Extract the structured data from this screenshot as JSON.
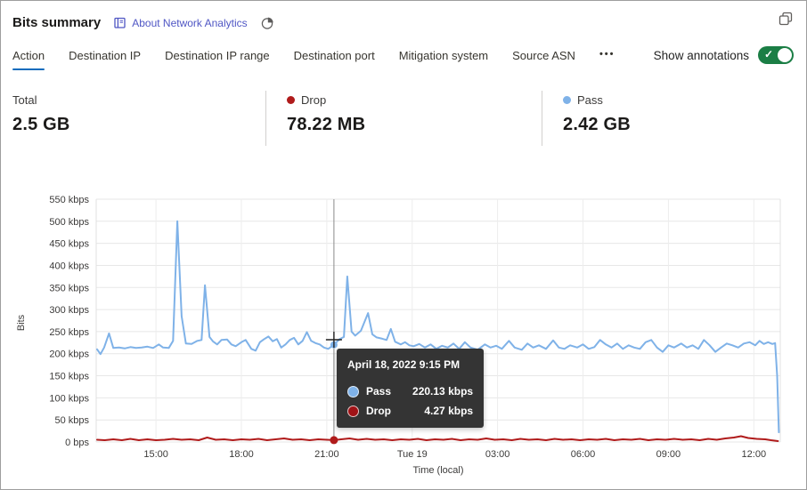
{
  "header": {
    "title": "Bits summary",
    "about_link": "About Network Analytics"
  },
  "tabs": {
    "items": [
      {
        "label": "Action",
        "active": true
      },
      {
        "label": "Destination IP",
        "active": false
      },
      {
        "label": "Destination IP range",
        "active": false
      },
      {
        "label": "Destination port",
        "active": false
      },
      {
        "label": "Mitigation system",
        "active": false
      },
      {
        "label": "Source ASN",
        "active": false
      }
    ],
    "more": "•••",
    "active_underline_color": "#0f6cbd"
  },
  "annotations": {
    "label": "Show annotations",
    "state": "on",
    "on_color": "#1b7e45"
  },
  "stats": {
    "cards": [
      {
        "label": "Total",
        "value": "2.5 GB"
      },
      {
        "label": "Drop",
        "value": "78.22 MB",
        "dot_color": "#b01b1b"
      },
      {
        "label": "Pass",
        "value": "2.42 GB",
        "dot_color": "#7fb2e8"
      }
    ]
  },
  "tooltip": {
    "title": "April 18, 2022 9:15 PM",
    "rows": [
      {
        "label": "Pass",
        "value": "220.13 kbps",
        "color": "#7fb2e8"
      },
      {
        "label": "Drop",
        "value": "4.27 kbps",
        "color": "#a01216"
      }
    ]
  },
  "chart_data": {
    "type": "line",
    "title": "Bits summary",
    "xlabel": "Time (local)",
    "ylabel": "Bits",
    "unit": "kbps",
    "ylim": [
      0,
      550
    ],
    "x_range": [
      12.9,
      36.93
    ],
    "grid": true,
    "y_ticks": [
      {
        "value": 550,
        "label": "550 kbps"
      },
      {
        "value": 500,
        "label": "500 kbps"
      },
      {
        "value": 450,
        "label": "450 kbps"
      },
      {
        "value": 400,
        "label": "400 kbps"
      },
      {
        "value": 350,
        "label": "350 kbps"
      },
      {
        "value": 300,
        "label": "300 kbps"
      },
      {
        "value": 250,
        "label": "250 kbps"
      },
      {
        "value": 200,
        "label": "200 kbps"
      },
      {
        "value": 150,
        "label": "150 kbps"
      },
      {
        "value": 100,
        "label": "100 kbps"
      },
      {
        "value": 50,
        "label": "50 kbps"
      },
      {
        "value": 0,
        "label": "0 bps"
      }
    ],
    "x_ticks": [
      {
        "value": 15,
        "label": "15:00"
      },
      {
        "value": 18,
        "label": "18:00"
      },
      {
        "value": 21,
        "label": "21:00"
      },
      {
        "value": 24,
        "label": "Tue 19"
      },
      {
        "value": 27,
        "label": "03:00"
      },
      {
        "value": 30,
        "label": "06:00"
      },
      {
        "value": 33,
        "label": "09:00"
      },
      {
        "value": 36,
        "label": "12:00"
      }
    ],
    "crosshair": {
      "t": 21.25,
      "time_label": "April 18, 2022 9:15 PM",
      "pass_kbps": 220.13,
      "drop_kbps": 4.27
    },
    "series": [
      {
        "name": "Pass",
        "color": "#7fb2e8",
        "points": [
          [
            12.93,
            210
          ],
          [
            13.05,
            199
          ],
          [
            13.18,
            214
          ],
          [
            13.35,
            246
          ],
          [
            13.5,
            213
          ],
          [
            13.7,
            214
          ],
          [
            13.9,
            212
          ],
          [
            14.1,
            215
          ],
          [
            14.3,
            213
          ],
          [
            14.5,
            214
          ],
          [
            14.7,
            216
          ],
          [
            14.9,
            213
          ],
          [
            15.1,
            221
          ],
          [
            15.25,
            214
          ],
          [
            15.45,
            213
          ],
          [
            15.6,
            229
          ],
          [
            15.75,
            500
          ],
          [
            15.9,
            285
          ],
          [
            16.05,
            223
          ],
          [
            16.25,
            222
          ],
          [
            16.45,
            229
          ],
          [
            16.6,
            231
          ],
          [
            16.72,
            355
          ],
          [
            16.88,
            238
          ],
          [
            17.0,
            228
          ],
          [
            17.15,
            221
          ],
          [
            17.3,
            231
          ],
          [
            17.5,
            232
          ],
          [
            17.65,
            221
          ],
          [
            17.8,
            217
          ],
          [
            18.0,
            226
          ],
          [
            18.15,
            231
          ],
          [
            18.35,
            211
          ],
          [
            18.5,
            207
          ],
          [
            18.65,
            226
          ],
          [
            18.8,
            233
          ],
          [
            18.95,
            239
          ],
          [
            19.1,
            228
          ],
          [
            19.25,
            233
          ],
          [
            19.4,
            214
          ],
          [
            19.55,
            221
          ],
          [
            19.7,
            231
          ],
          [
            19.85,
            236
          ],
          [
            20.0,
            221
          ],
          [
            20.15,
            229
          ],
          [
            20.3,
            249
          ],
          [
            20.45,
            229
          ],
          [
            20.6,
            224
          ],
          [
            20.75,
            221
          ],
          [
            20.9,
            214
          ],
          [
            21.05,
            211
          ],
          [
            21.25,
            220.13
          ],
          [
            21.45,
            233
          ],
          [
            21.6,
            238
          ],
          [
            21.72,
            375
          ],
          [
            21.87,
            250
          ],
          [
            22.0,
            241
          ],
          [
            22.2,
            252
          ],
          [
            22.45,
            292
          ],
          [
            22.6,
            244
          ],
          [
            22.75,
            237
          ],
          [
            22.95,
            234
          ],
          [
            23.1,
            231
          ],
          [
            23.25,
            256
          ],
          [
            23.4,
            227
          ],
          [
            23.6,
            221
          ],
          [
            23.75,
            226
          ],
          [
            23.9,
            219
          ],
          [
            24.05,
            217
          ],
          [
            24.25,
            222
          ],
          [
            24.45,
            214
          ],
          [
            24.65,
            221
          ],
          [
            24.85,
            211
          ],
          [
            25.05,
            218
          ],
          [
            25.25,
            214
          ],
          [
            25.45,
            223
          ],
          [
            25.65,
            211
          ],
          [
            25.85,
            226
          ],
          [
            26.05,
            214
          ],
          [
            26.3,
            209
          ],
          [
            26.55,
            221
          ],
          [
            26.75,
            214
          ],
          [
            26.95,
            218
          ],
          [
            27.15,
            211
          ],
          [
            27.4,
            229
          ],
          [
            27.6,
            214
          ],
          [
            27.85,
            209
          ],
          [
            28.05,
            223
          ],
          [
            28.25,
            214
          ],
          [
            28.45,
            219
          ],
          [
            28.7,
            211
          ],
          [
            28.95,
            230
          ],
          [
            29.15,
            214
          ],
          [
            29.35,
            211
          ],
          [
            29.55,
            219
          ],
          [
            29.8,
            214
          ],
          [
            30.0,
            221
          ],
          [
            30.2,
            211
          ],
          [
            30.4,
            215
          ],
          [
            30.6,
            231
          ],
          [
            30.8,
            221
          ],
          [
            31.0,
            214
          ],
          [
            31.2,
            223
          ],
          [
            31.4,
            211
          ],
          [
            31.6,
            219
          ],
          [
            31.8,
            214
          ],
          [
            32.0,
            211
          ],
          [
            32.2,
            226
          ],
          [
            32.4,
            231
          ],
          [
            32.6,
            214
          ],
          [
            32.8,
            204
          ],
          [
            33.0,
            219
          ],
          [
            33.2,
            214
          ],
          [
            33.45,
            223
          ],
          [
            33.65,
            214
          ],
          [
            33.85,
            219
          ],
          [
            34.05,
            211
          ],
          [
            34.25,
            231
          ],
          [
            34.45,
            219
          ],
          [
            34.65,
            204
          ],
          [
            34.85,
            214
          ],
          [
            35.05,
            223
          ],
          [
            35.25,
            219
          ],
          [
            35.45,
            214
          ],
          [
            35.65,
            223
          ],
          [
            35.85,
            226
          ],
          [
            36.05,
            219
          ],
          [
            36.2,
            229
          ],
          [
            36.35,
            222
          ],
          [
            36.5,
            226
          ],
          [
            36.65,
            222
          ],
          [
            36.75,
            224
          ],
          [
            36.82,
            150
          ],
          [
            36.88,
            22
          ]
        ]
      },
      {
        "name": "Drop",
        "color": "#b01b1b",
        "points": [
          [
            12.93,
            5
          ],
          [
            13.2,
            4
          ],
          [
            13.5,
            6
          ],
          [
            13.8,
            4
          ],
          [
            14.1,
            7
          ],
          [
            14.4,
            4
          ],
          [
            14.7,
            6
          ],
          [
            15.0,
            4
          ],
          [
            15.3,
            5
          ],
          [
            15.6,
            7
          ],
          [
            15.9,
            5
          ],
          [
            16.2,
            6
          ],
          [
            16.5,
            4
          ],
          [
            16.8,
            10
          ],
          [
            17.1,
            5
          ],
          [
            17.4,
            6
          ],
          [
            17.7,
            4
          ],
          [
            18.0,
            6
          ],
          [
            18.3,
            5
          ],
          [
            18.6,
            7
          ],
          [
            18.9,
            4
          ],
          [
            19.2,
            6
          ],
          [
            19.5,
            8
          ],
          [
            19.8,
            5
          ],
          [
            20.1,
            6
          ],
          [
            20.4,
            4
          ],
          [
            20.7,
            6
          ],
          [
            21.0,
            5
          ],
          [
            21.25,
            4.27
          ],
          [
            21.5,
            6
          ],
          [
            21.8,
            8
          ],
          [
            22.1,
            5
          ],
          [
            22.4,
            7
          ],
          [
            22.7,
            5
          ],
          [
            23.0,
            6
          ],
          [
            23.3,
            4
          ],
          [
            23.6,
            6
          ],
          [
            23.9,
            5
          ],
          [
            24.2,
            7
          ],
          [
            24.5,
            4
          ],
          [
            24.8,
            6
          ],
          [
            25.1,
            5
          ],
          [
            25.4,
            7
          ],
          [
            25.7,
            4
          ],
          [
            26.0,
            6
          ],
          [
            26.3,
            5
          ],
          [
            26.6,
            8
          ],
          [
            26.9,
            5
          ],
          [
            27.2,
            6
          ],
          [
            27.5,
            4
          ],
          [
            27.8,
            7
          ],
          [
            28.1,
            5
          ],
          [
            28.4,
            6
          ],
          [
            28.7,
            4
          ],
          [
            29.0,
            7
          ],
          [
            29.3,
            5
          ],
          [
            29.6,
            6
          ],
          [
            29.9,
            4
          ],
          [
            30.2,
            6
          ],
          [
            30.5,
            5
          ],
          [
            30.8,
            7
          ],
          [
            31.1,
            4
          ],
          [
            31.4,
            6
          ],
          [
            31.7,
            5
          ],
          [
            32.0,
            7
          ],
          [
            32.3,
            4
          ],
          [
            32.6,
            6
          ],
          [
            32.9,
            5
          ],
          [
            33.2,
            7
          ],
          [
            33.5,
            5
          ],
          [
            33.8,
            6
          ],
          [
            34.1,
            4
          ],
          [
            34.4,
            7
          ],
          [
            34.7,
            5
          ],
          [
            35.0,
            8
          ],
          [
            35.3,
            10
          ],
          [
            35.55,
            13
          ],
          [
            35.8,
            9
          ],
          [
            36.1,
            7
          ],
          [
            36.4,
            6
          ],
          [
            36.6,
            4
          ],
          [
            36.85,
            2
          ]
        ]
      }
    ]
  }
}
